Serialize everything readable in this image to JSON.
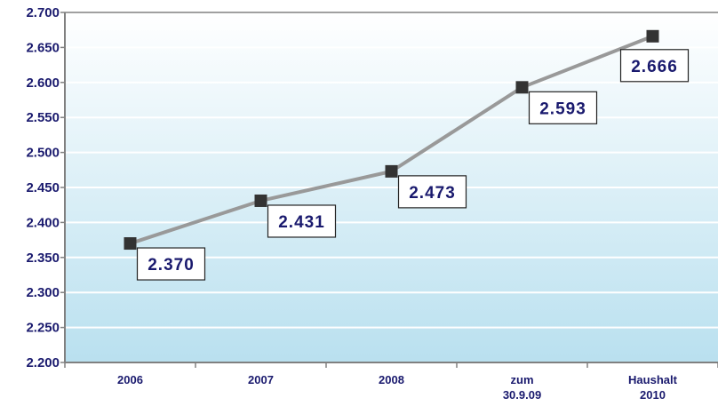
{
  "chart_data": {
    "type": "line",
    "categories": [
      [
        "2006"
      ],
      [
        "2007"
      ],
      [
        "2008"
      ],
      [
        "zum",
        "30.9.09"
      ],
      [
        "Haushalt",
        "2010"
      ]
    ],
    "values": [
      2370,
      2431,
      2473,
      2593,
      2666
    ],
    "data_labels": [
      "2.370",
      "2.431",
      "2.473",
      "2.593",
      "2.666"
    ],
    "ylim": [
      2200,
      2700
    ],
    "yticks": [
      {
        "value": 2200,
        "label": "2.200"
      },
      {
        "value": 2250,
        "label": "2.250"
      },
      {
        "value": 2300,
        "label": "2.300"
      },
      {
        "value": 2350,
        "label": "2.350"
      },
      {
        "value": 2400,
        "label": "2.400"
      },
      {
        "value": 2450,
        "label": "2.450"
      },
      {
        "value": 2500,
        "label": "2.500"
      },
      {
        "value": 2550,
        "label": "2.550"
      },
      {
        "value": 2600,
        "label": "2.600"
      },
      {
        "value": 2650,
        "label": "2.650"
      },
      {
        "value": 2700,
        "label": "2.700"
      }
    ],
    "grid": true,
    "colors": {
      "line": "#999999",
      "marker": "#333333",
      "text": "#1a1a6e",
      "plot_top": "#ffffff",
      "plot_bottom": "#b9e0ef",
      "grid": "#ffffff",
      "axis": "#808080"
    }
  }
}
